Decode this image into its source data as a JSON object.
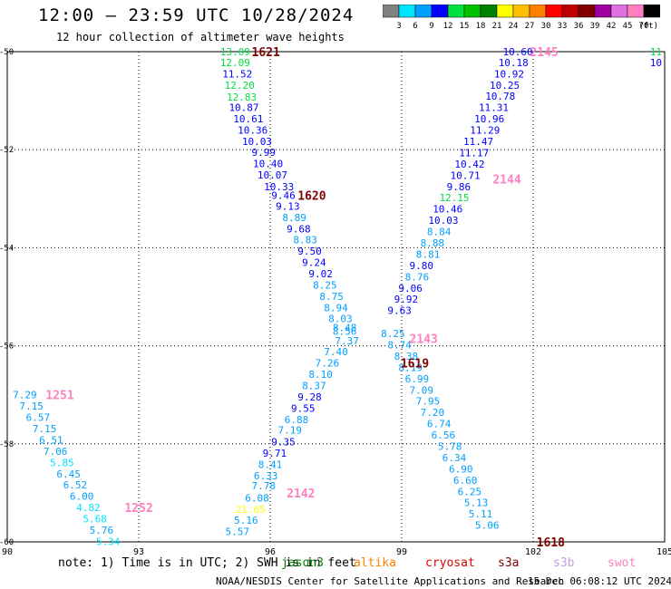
{
  "header": {
    "title": "12:00 — 23:59 UTC 10/28/2024",
    "subtitle": "12 hour collection of altimeter wave heights"
  },
  "legend": {
    "ticks": [
      "3",
      "6",
      "9",
      "12",
      "15",
      "18",
      "21",
      "24",
      "27",
      "30",
      "33",
      "36",
      "39",
      "42",
      "45",
      "70"
    ],
    "unit": "(ft)",
    "colors": [
      "#808080",
      "#00e5ff",
      "#00a0ff",
      "#0000ff",
      "#00e040",
      "#00c000",
      "#008000",
      "#ffff00",
      "#ffc000",
      "#ff8000",
      "#ff0000",
      "#c00000",
      "#800000",
      "#a000a0",
      "#e070e0",
      "#ff80c0",
      "#000000"
    ]
  },
  "note": {
    "prefix": "note: 1) Time is in UTC; 2) SWH is in feet",
    "sats": [
      {
        "name": "jason3",
        "color": "#008000"
      },
      {
        "name": "altika",
        "color": "#ff8000"
      },
      {
        "name": "cryosat",
        "color": "#e00000"
      },
      {
        "name": "s3a",
        "color": "#800000"
      },
      {
        "name": "s3b",
        "color": "#c0a0e0"
      },
      {
        "name": "swot",
        "color": "#ff80c0"
      }
    ]
  },
  "footer": {
    "credit": "NOAA/NESDIS Center for Satellite Applications and Research",
    "date": "15 Dec 06:08:12 UTC 2024"
  },
  "chart_data": {
    "type": "scatter",
    "xlim": [
      90,
      105
    ],
    "ylim": [
      -60,
      -50
    ],
    "x_ticks": [
      {
        "v": 90,
        "label": "90"
      },
      {
        "v": 93,
        "label": "93"
      },
      {
        "v": 96,
        "label": "96"
      },
      {
        "v": 99,
        "label": "99"
      },
      {
        "v": 102,
        "label": "102"
      },
      {
        "v": 105,
        "label": "105"
      }
    ],
    "y_ticks": [
      {
        "v": -50,
        "label": "-50"
      },
      {
        "v": -52,
        "label": "-52"
      },
      {
        "v": -54,
        "label": "-54"
      },
      {
        "v": -56,
        "label": "-56"
      },
      {
        "v": -58,
        "label": "-58"
      },
      {
        "v": -60,
        "label": "-60"
      }
    ],
    "grid": true,
    "points": [
      {
        "x": 95.2,
        "y": -50.0,
        "t": "13.09",
        "c": "#00e040"
      },
      {
        "x": 95.2,
        "y": -50.22,
        "t": "12.09",
        "c": "#00e040"
      },
      {
        "x": 95.25,
        "y": -50.45,
        "t": "11.52",
        "c": "#0000ff"
      },
      {
        "x": 95.3,
        "y": -50.68,
        "t": "12.20",
        "c": "#00e040"
      },
      {
        "x": 95.35,
        "y": -50.92,
        "t": "12.83",
        "c": "#00e040"
      },
      {
        "x": 95.4,
        "y": -51.14,
        "t": "10.87",
        "c": "#0000ff"
      },
      {
        "x": 95.5,
        "y": -51.37,
        "t": "10.61",
        "c": "#0000ff"
      },
      {
        "x": 95.6,
        "y": -51.6,
        "t": "10.36",
        "c": "#0000ff"
      },
      {
        "x": 95.7,
        "y": -51.83,
        "t": "10.03",
        "c": "#0000ff"
      },
      {
        "x": 95.85,
        "y": -52.05,
        "t": "9.99",
        "c": "#0000ff"
      },
      {
        "x": 95.95,
        "y": -52.28,
        "t": "10.40",
        "c": "#0000ff"
      },
      {
        "x": 96.05,
        "y": -52.51,
        "t": "10.07",
        "c": "#0000ff"
      },
      {
        "x": 96.2,
        "y": -52.75,
        "t": "10.33",
        "c": "#0000ff"
      },
      {
        "x": 96.3,
        "y": -52.93,
        "t": "9.46",
        "c": "#0000ff"
      },
      {
        "x": 96.4,
        "y": -53.15,
        "t": "9.13",
        "c": "#0000ff"
      },
      {
        "x": 96.55,
        "y": -53.38,
        "t": "8.89",
        "c": "#00a0ff"
      },
      {
        "x": 96.65,
        "y": -53.61,
        "t": "9.68",
        "c": "#0000ff"
      },
      {
        "x": 96.8,
        "y": -53.84,
        "t": "8.83",
        "c": "#00a0ff"
      },
      {
        "x": 96.9,
        "y": -54.07,
        "t": "9.50",
        "c": "#0000ff"
      },
      {
        "x": 97.0,
        "y": -54.3,
        "t": "9.24",
        "c": "#0000ff"
      },
      {
        "x": 97.15,
        "y": -54.53,
        "t": "9.02",
        "c": "#0000ff"
      },
      {
        "x": 97.25,
        "y": -54.76,
        "t": "8.25",
        "c": "#00a0ff"
      },
      {
        "x": 97.4,
        "y": -54.99,
        "t": "8.75",
        "c": "#00a0ff"
      },
      {
        "x": 97.5,
        "y": -55.22,
        "t": "8.94",
        "c": "#00a0ff"
      },
      {
        "x": 97.6,
        "y": -55.44,
        "t": "8.03",
        "c": "#00a0ff"
      },
      {
        "x": 97.7,
        "y": -55.63,
        "t": "8.48",
        "c": "#00a0ff"
      },
      {
        "x": 97.7,
        "y": -55.7,
        "t": "8.56",
        "c": "#00a0ff"
      },
      {
        "x": 97.75,
        "y": -55.9,
        "t": "7.37",
        "c": "#00a0ff"
      },
      {
        "x": 97.5,
        "y": -56.12,
        "t": "7.40",
        "c": "#00a0ff"
      },
      {
        "x": 97.3,
        "y": -56.35,
        "t": "7.26",
        "c": "#00a0ff"
      },
      {
        "x": 97.15,
        "y": -56.58,
        "t": "8.10",
        "c": "#00a0ff"
      },
      {
        "x": 97.0,
        "y": -56.81,
        "t": "8.37",
        "c": "#00a0ff"
      },
      {
        "x": 96.9,
        "y": -57.04,
        "t": "9.28",
        "c": "#0000ff"
      },
      {
        "x": 96.75,
        "y": -57.27,
        "t": "9.55",
        "c": "#0000ff"
      },
      {
        "x": 96.6,
        "y": -57.5,
        "t": "6.88",
        "c": "#00a0ff"
      },
      {
        "x": 96.45,
        "y": -57.72,
        "t": "7.19",
        "c": "#00a0ff"
      },
      {
        "x": 96.3,
        "y": -57.96,
        "t": "9.35",
        "c": "#0000ff"
      },
      {
        "x": 96.1,
        "y": -58.19,
        "t": "9.71",
        "c": "#0000ff"
      },
      {
        "x": 96.0,
        "y": -58.42,
        "t": "8.41",
        "c": "#00a0ff"
      },
      {
        "x": 95.9,
        "y": -58.65,
        "t": "6.33",
        "c": "#00a0ff"
      },
      {
        "x": 95.85,
        "y": -58.85,
        "t": "7.78",
        "c": "#00a0ff"
      },
      {
        "x": 95.7,
        "y": -59.1,
        "t": "6.08",
        "c": "#00a0ff"
      },
      {
        "x": 95.55,
        "y": -59.33,
        "t": "21.65",
        "c": "#ffff00"
      },
      {
        "x": 95.45,
        "y": -59.56,
        "t": "5.16",
        "c": "#00a0ff"
      },
      {
        "x": 95.25,
        "y": -59.79,
        "t": "5.57",
        "c": "#00a0ff"
      },
      {
        "x": 101.65,
        "y": -50.0,
        "t": "10.60",
        "c": "#0000ff"
      },
      {
        "x": 101.55,
        "y": -50.22,
        "t": "10.18",
        "c": "#0000ff"
      },
      {
        "x": 101.45,
        "y": -50.45,
        "t": "10.92",
        "c": "#0000ff"
      },
      {
        "x": 101.35,
        "y": -50.68,
        "t": "10.25",
        "c": "#0000ff"
      },
      {
        "x": 101.25,
        "y": -50.91,
        "t": "10.78",
        "c": "#0000ff"
      },
      {
        "x": 101.1,
        "y": -51.14,
        "t": "11.31",
        "c": "#0000ff"
      },
      {
        "x": 101.0,
        "y": -51.37,
        "t": "10.96",
        "c": "#0000ff"
      },
      {
        "x": 100.9,
        "y": -51.6,
        "t": "11.29",
        "c": "#0000ff"
      },
      {
        "x": 100.75,
        "y": -51.83,
        "t": "11.47",
        "c": "#0000ff"
      },
      {
        "x": 100.65,
        "y": -52.06,
        "t": "11.17",
        "c": "#0000ff"
      },
      {
        "x": 100.55,
        "y": -52.29,
        "t": "10.42",
        "c": "#0000ff"
      },
      {
        "x": 100.45,
        "y": -52.52,
        "t": "10.71",
        "c": "#0000ff"
      },
      {
        "x": 100.3,
        "y": -52.75,
        "t": "9.86",
        "c": "#0000ff"
      },
      {
        "x": 100.2,
        "y": -52.98,
        "t": "12.15",
        "c": "#00e040"
      },
      {
        "x": 100.05,
        "y": -53.21,
        "t": "10.46",
        "c": "#0000ff"
      },
      {
        "x": 99.95,
        "y": -53.44,
        "t": "10.03",
        "c": "#0000ff"
      },
      {
        "x": 99.85,
        "y": -53.67,
        "t": "8.84",
        "c": "#00a0ff"
      },
      {
        "x": 99.7,
        "y": -53.9,
        "t": "8.88",
        "c": "#00a0ff"
      },
      {
        "x": 99.6,
        "y": -54.13,
        "t": "8.81",
        "c": "#00a0ff"
      },
      {
        "x": 99.45,
        "y": -54.36,
        "t": "9.80",
        "c": "#0000ff"
      },
      {
        "x": 99.35,
        "y": -54.59,
        "t": "8.76",
        "c": "#00a0ff"
      },
      {
        "x": 99.2,
        "y": -54.82,
        "t": "9.06",
        "c": "#0000ff"
      },
      {
        "x": 99.1,
        "y": -55.05,
        "t": "9.92",
        "c": "#0000ff"
      },
      {
        "x": 98.95,
        "y": -55.28,
        "t": "9.63",
        "c": "#0000ff"
      },
      {
        "x": 98.8,
        "y": -55.75,
        "t": "8.25",
        "c": "#00a0ff"
      },
      {
        "x": 98.95,
        "y": -55.98,
        "t": "8.74",
        "c": "#00a0ff"
      },
      {
        "x": 99.1,
        "y": -56.21,
        "t": "8.38",
        "c": "#00a0ff"
      },
      {
        "x": 99.2,
        "y": -56.44,
        "t": "8.19",
        "c": "#00a0ff"
      },
      {
        "x": 99.35,
        "y": -56.67,
        "t": "6.99",
        "c": "#00a0ff"
      },
      {
        "x": 99.45,
        "y": -56.9,
        "t": "7.09",
        "c": "#00a0ff"
      },
      {
        "x": 99.6,
        "y": -57.13,
        "t": "7.95",
        "c": "#00a0ff"
      },
      {
        "x": 99.7,
        "y": -57.36,
        "t": "7.20",
        "c": "#00a0ff"
      },
      {
        "x": 99.85,
        "y": -57.59,
        "t": "6.74",
        "c": "#00a0ff"
      },
      {
        "x": 99.95,
        "y": -57.82,
        "t": "6.56",
        "c": "#00a0ff"
      },
      {
        "x": 100.1,
        "y": -58.05,
        "t": "5.78",
        "c": "#00a0ff"
      },
      {
        "x": 100.2,
        "y": -58.28,
        "t": "6.34",
        "c": "#00a0ff"
      },
      {
        "x": 100.35,
        "y": -58.51,
        "t": "6.90",
        "c": "#00a0ff"
      },
      {
        "x": 100.45,
        "y": -58.74,
        "t": "6.60",
        "c": "#00a0ff"
      },
      {
        "x": 100.55,
        "y": -58.97,
        "t": "6.25",
        "c": "#00a0ff"
      },
      {
        "x": 100.7,
        "y": -59.2,
        "t": "5.13",
        "c": "#00a0ff"
      },
      {
        "x": 100.8,
        "y": -59.43,
        "t": "5.11",
        "c": "#00a0ff"
      },
      {
        "x": 100.95,
        "y": -59.66,
        "t": "5.06",
        "c": "#00a0ff"
      },
      {
        "x": 90.4,
        "y": -57.0,
        "t": "7.29",
        "c": "#00a0ff"
      },
      {
        "x": 90.55,
        "y": -57.23,
        "t": "7.15",
        "c": "#00a0ff"
      },
      {
        "x": 90.7,
        "y": -57.46,
        "t": "6.57",
        "c": "#00a0ff"
      },
      {
        "x": 90.85,
        "y": -57.69,
        "t": "7.15",
        "c": "#00a0ff"
      },
      {
        "x": 91.0,
        "y": -57.92,
        "t": "6.51",
        "c": "#00a0ff"
      },
      {
        "x": 91.1,
        "y": -58.15,
        "t": "7.06",
        "c": "#00a0ff"
      },
      {
        "x": 91.25,
        "y": -58.38,
        "t": "5.85",
        "c": "#00e5ff"
      },
      {
        "x": 91.4,
        "y": -58.61,
        "t": "6.45",
        "c": "#00a0ff"
      },
      {
        "x": 91.55,
        "y": -58.84,
        "t": "6.52",
        "c": "#00a0ff"
      },
      {
        "x": 91.7,
        "y": -59.07,
        "t": "6.00",
        "c": "#00a0ff"
      },
      {
        "x": 91.85,
        "y": -59.3,
        "t": "4.82",
        "c": "#00e5ff"
      },
      {
        "x": 92.0,
        "y": -59.53,
        "t": "5.68",
        "c": "#00e5ff"
      },
      {
        "x": 92.15,
        "y": -59.76,
        "t": "5.76",
        "c": "#00a0ff"
      },
      {
        "x": 92.3,
        "y": -59.99,
        "t": "5.34",
        "c": "#00e5ff"
      },
      {
        "x": 104.8,
        "y": -50.0,
        "t": "11",
        "c": "#00e040"
      },
      {
        "x": 104.8,
        "y": -50.22,
        "t": "10",
        "c": "#0000ff"
      }
    ],
    "passes": [
      {
        "x": 95.9,
        "y": -50.0,
        "t": "1621",
        "c": "#800000"
      },
      {
        "x": 96.95,
        "y": -52.93,
        "t": "1620",
        "c": "#800000"
      },
      {
        "x": 99.3,
        "y": -56.35,
        "t": "1619",
        "c": "#800000"
      },
      {
        "x": 102.4,
        "y": -60.0,
        "t": "1618",
        "c": "#800000"
      },
      {
        "x": 102.25,
        "y": -50.0,
        "t": "2145",
        "c": "#ff80c0"
      },
      {
        "x": 101.4,
        "y": -52.6,
        "t": "2144",
        "c": "#ff80c0"
      },
      {
        "x": 99.5,
        "y": -55.85,
        "t": "2143",
        "c": "#ff80c0"
      },
      {
        "x": 96.7,
        "y": -59.0,
        "t": "2142",
        "c": "#ff80c0"
      },
      {
        "x": 91.2,
        "y": -57.0,
        "t": "1251",
        "c": "#ff80c0"
      },
      {
        "x": 93.0,
        "y": -59.3,
        "t": "1252",
        "c": "#ff80c0"
      }
    ]
  }
}
